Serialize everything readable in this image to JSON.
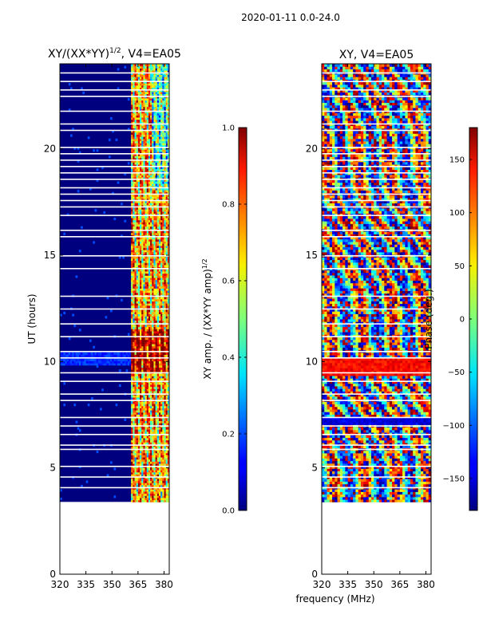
{
  "figure": {
    "suptitle": "2020-01-11 0.0-24.0",
    "xlabel": "frequency (MHz)",
    "ylabel": "UT (hours)"
  },
  "chart_data": [
    {
      "type": "heatmap",
      "title": "XY/(XX*YY)^1/2, V4=EA05",
      "title_main": "XY/(XX*YY)",
      "title_sup": "1/2",
      "title_tail": ", V4=EA05",
      "xlim": [
        320,
        383
      ],
      "ylim": [
        0,
        24
      ],
      "xticks": [
        320,
        335,
        350,
        365,
        380
      ],
      "yticks": [
        0,
        5,
        10,
        15,
        20
      ],
      "data_start_hour": 3.4,
      "colorbar": {
        "label_main": "XY amp. / (XX*YY amp)",
        "label_sup": "1/2",
        "range": [
          0.0,
          1.0
        ],
        "ticks": [
          "0.0",
          "0.2",
          "0.4",
          "0.6",
          "0.8",
          "1.0"
        ],
        "colormap": "jet"
      }
    },
    {
      "type": "heatmap",
      "title": "XY, V4=EA05",
      "xlim": [
        320,
        383
      ],
      "ylim": [
        0,
        24
      ],
      "xticks": [
        320,
        335,
        350,
        365,
        380
      ],
      "yticks": [
        0,
        5,
        10,
        15,
        20
      ],
      "data_start_hour": 3.4,
      "colorbar": {
        "label": "Phase (deg.)",
        "range": [
          -180,
          180
        ],
        "ticks": [
          "150",
          "100",
          "50",
          "0",
          "−50",
          "−100",
          "−150"
        ],
        "tick_values": [
          150,
          100,
          50,
          0,
          -50,
          -100,
          -150
        ],
        "colormap": "jet"
      }
    }
  ]
}
